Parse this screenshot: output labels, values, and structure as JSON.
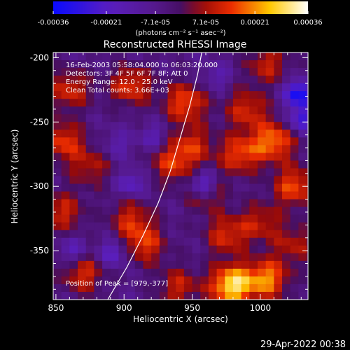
{
  "chart_data": {
    "type": "heatmap",
    "title": "Reconstructed RHESSI Image",
    "xlabel": "Heliocentric X (arcsec)",
    "ylabel": "Heliocentric Y (arcsec)",
    "xlim": [
      848,
      1035
    ],
    "ylim": [
      -388,
      -196
    ],
    "x_ticks": [
      850,
      900,
      950,
      1000
    ],
    "y_ticks": [
      -200,
      -250,
      -300,
      -350
    ],
    "colorbar": {
      "ticks": [
        "-0.00036",
        "-0.00021",
        "-7.1e-05",
        "7.1e-05",
        "0.00021",
        "0.00036"
      ],
      "tick_values": [
        -0.00036,
        -0.00021,
        -7.1e-05,
        7.1e-05,
        0.00021,
        0.00036
      ],
      "range": [
        -0.00036,
        0.00036
      ],
      "unit_label": "(photons cm⁻² s⁻¹ asec⁻²)"
    },
    "info_lines": [
      "16-Feb-2003 05:58:04.000 to 06:03:20.000",
      "Detectors: 3F 4F 5F 6F 7F 8F; Att 0",
      "Energy Range: 12.0 - 25.0 keV",
      "Clean    Total counts: 3.66E+03"
    ],
    "peak_label": "Position of Peak = [979,-377]",
    "peak_position": [
      979,
      -377
    ],
    "hot_regions": [
      {
        "x": 860,
        "y": -225,
        "value": 0.00018
      },
      {
        "x": 905,
        "y": -222,
        "value": 0.0002
      },
      {
        "x": 945,
        "y": -235,
        "value": 0.00022
      },
      {
        "x": 990,
        "y": -240,
        "value": 0.00018
      },
      {
        "x": 1005,
        "y": -205,
        "value": 0.00016
      },
      {
        "x": 855,
        "y": -265,
        "value": 0.0002
      },
      {
        "x": 875,
        "y": -285,
        "value": 0.00014
      },
      {
        "x": 935,
        "y": -282,
        "value": 0.00018
      },
      {
        "x": 950,
        "y": -268,
        "value": 0.00016
      },
      {
        "x": 985,
        "y": -275,
        "value": 0.00021
      },
      {
        "x": 1010,
        "y": -265,
        "value": 0.00025
      },
      {
        "x": 1025,
        "y": -300,
        "value": 0.00022
      },
      {
        "x": 855,
        "y": -320,
        "value": 0.00017
      },
      {
        "x": 905,
        "y": -325,
        "value": 0.00016
      },
      {
        "x": 915,
        "y": -345,
        "value": 0.00019
      },
      {
        "x": 960,
        "y": -305,
        "value": 0.00014
      },
      {
        "x": 975,
        "y": -338,
        "value": 0.00018
      },
      {
        "x": 1000,
        "y": -328,
        "value": 0.00015
      },
      {
        "x": 1025,
        "y": -345,
        "value": 0.00014
      },
      {
        "x": 870,
        "y": -368,
        "value": 0.00018
      },
      {
        "x": 940,
        "y": -378,
        "value": 0.00016
      },
      {
        "x": 979,
        "y": -377,
        "value": 0.00036
      },
      {
        "x": 1005,
        "y": -372,
        "value": 0.00026
      }
    ],
    "cold_regions": [
      {
        "x": 1028,
        "y": -228,
        "value": -0.0003
      },
      {
        "x": 1030,
        "y": -248,
        "value": -0.00022
      },
      {
        "x": 958,
        "y": -298,
        "value": -0.00025
      },
      {
        "x": 905,
        "y": -298,
        "value": -0.00016
      },
      {
        "x": 862,
        "y": -350,
        "value": -0.00014
      },
      {
        "x": 892,
        "y": -352,
        "value": -0.00018
      },
      {
        "x": 922,
        "y": -262,
        "value": -0.00012
      },
      {
        "x": 968,
        "y": -215,
        "value": -0.0001
      },
      {
        "x": 895,
        "y": -268,
        "value": -0.0001
      }
    ],
    "limb_curve": [
      [
        888,
        -388
      ],
      [
        902,
        -363
      ],
      [
        914,
        -338
      ],
      [
        925,
        -313
      ],
      [
        934,
        -288
      ],
      [
        941,
        -263
      ],
      [
        948,
        -238
      ],
      [
        954,
        -213
      ],
      [
        957,
        -196
      ]
    ]
  },
  "footer": {
    "timestamp": "29-Apr-2022 00:38"
  }
}
